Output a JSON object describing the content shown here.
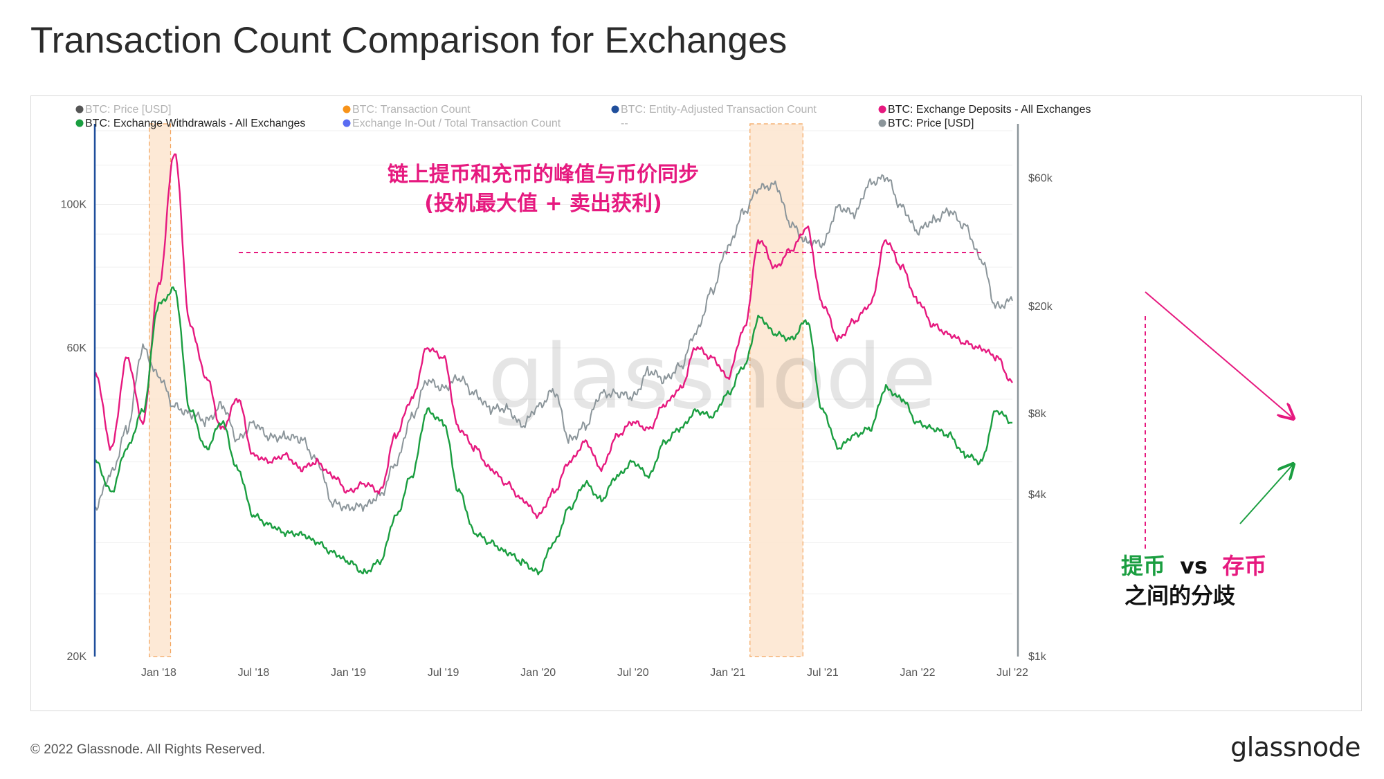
{
  "page": {
    "title": "Transaction Count Comparison for Exchanges",
    "copyright": "© 2022 Glassnode. All Rights Reserved.",
    "logo": "glassnode",
    "watermark": "glassnode"
  },
  "legend": [
    {
      "label": "BTC: Price [USD]",
      "color": "#555555",
      "active": false
    },
    {
      "label": "BTC: Transaction Count",
      "color": "#f7931a",
      "active": false
    },
    {
      "label": "BTC: Entity-Adjusted Transaction Count",
      "color": "#1f4e9b",
      "active": false
    },
    {
      "label": "BTC: Exchange Deposits - All Exchanges",
      "color": "#e6197f",
      "active": true
    },
    {
      "label": "BTC: Exchange Withdrawals - All Exchanges",
      "color": "#1a9e40",
      "active": true
    },
    {
      "label": "Exchange In-Out / Total Transaction Count",
      "color": "#5a6cf2",
      "active": false
    },
    {
      "label": "--",
      "color": "",
      "active": false
    },
    {
      "label": "BTC: Price [USD]",
      "color": "#8b959a",
      "active": true
    }
  ],
  "annotations": {
    "headline_line1": "链上提币和充币的峰值与币价同步",
    "headline_line2": "(投机最大值 + 卖出获利)",
    "divergence_withdraw": "提币",
    "divergence_vs": "vs",
    "divergence_deposit": "存币",
    "divergence_line2": "之间的分歧"
  },
  "chart_data": {
    "type": "line",
    "x_ticks": [
      "Jan '18",
      "Jul '18",
      "Jan '19",
      "Jul '19",
      "Jan '20",
      "Jul '20",
      "Jan '21",
      "Jul '21",
      "Jan '22",
      "Jul '22"
    ],
    "y_left": {
      "ticks": [
        "100K",
        "60K",
        "20K"
      ],
      "range": [
        20000,
        130000
      ],
      "scale": "log"
    },
    "y_right": {
      "ticks": [
        "$60k",
        "$20k",
        "$8k",
        "$4k",
        "$1k"
      ],
      "range": [
        1000,
        90000
      ],
      "scale": "log"
    },
    "highlight_periods": [
      [
        "Dec '17",
        "Jan '18"
      ],
      [
        "Feb '21",
        "May '21"
      ]
    ],
    "x_range": [
      "Sep '17",
      "Jul '22"
    ],
    "series": [
      {
        "name": "BTC: Exchange Deposits - All Exchanges",
        "axis": "left",
        "color": "#e6197f",
        "x": [
          "Sep '17",
          "Oct '17",
          "Nov '17",
          "Dec '17",
          "Jan '18",
          "Feb '18",
          "Mar '18",
          "Apr '18",
          "May '18",
          "Jun '18",
          "Jul '18",
          "Aug '18",
          "Sep '18",
          "Oct '18",
          "Nov '18",
          "Dec '18",
          "Jan '19",
          "Feb '19",
          "Mar '19",
          "Apr '19",
          "May '19",
          "Jun '19",
          "Jul '19",
          "Aug '19",
          "Sep '19",
          "Oct '19",
          "Nov '19",
          "Dec '19",
          "Jan '20",
          "Feb '20",
          "Mar '20",
          "Apr '20",
          "May '20",
          "Jun '20",
          "Jul '20",
          "Aug '20",
          "Sep '20",
          "Oct '20",
          "Nov '20",
          "Dec '20",
          "Jan '21",
          "Feb '21",
          "Mar '21",
          "Apr '21",
          "May '21",
          "Jun '21",
          "Jul '21",
          "Aug '21",
          "Sep '21",
          "Oct '21",
          "Nov '21",
          "Dec '21",
          "Jan '22",
          "Feb '22",
          "Mar '22",
          "Apr '22",
          "May '22",
          "Jun '22",
          "Jul '22"
        ],
        "values": [
          55000,
          42000,
          58000,
          46000,
          75000,
          120000,
          65000,
          54000,
          45000,
          50000,
          41000,
          40000,
          41000,
          39000,
          40000,
          38000,
          36000,
          37000,
          36000,
          44000,
          50000,
          60000,
          58000,
          45000,
          42000,
          39000,
          37000,
          35000,
          33000,
          36000,
          40000,
          43000,
          39000,
          44000,
          46000,
          45000,
          49000,
          52000,
          60000,
          58000,
          54000,
          64000,
          88000,
          80000,
          85000,
          92000,
          70000,
          62000,
          66000,
          70000,
          88000,
          80000,
          71000,
          65000,
          63000,
          61000,
          60000,
          58000,
          53000
        ]
      },
      {
        "name": "BTC: Exchange Withdrawals - All Exchanges",
        "axis": "left",
        "color": "#1a9e40",
        "x": [
          "Sep '17",
          "Oct '17",
          "Nov '17",
          "Dec '17",
          "Jan '18",
          "Feb '18",
          "Mar '18",
          "Apr '18",
          "May '18",
          "Jun '18",
          "Jul '18",
          "Aug '18",
          "Sep '18",
          "Oct '18",
          "Nov '18",
          "Dec '18",
          "Jan '19",
          "Feb '19",
          "Mar '19",
          "Apr '19",
          "May '19",
          "Jun '19",
          "Jul '19",
          "Aug '19",
          "Sep '19",
          "Oct '19",
          "Nov '19",
          "Dec '19",
          "Jan '20",
          "Feb '20",
          "Mar '20",
          "Apr '20",
          "May '20",
          "Jun '20",
          "Jul '20",
          "Aug '20",
          "Sep '20",
          "Oct '20",
          "Nov '20",
          "Dec '20",
          "Jan '21",
          "Feb '21",
          "Mar '21",
          "Apr '21",
          "May '21",
          "Jun '21",
          "Jul '21",
          "Aug '21",
          "Sep '21",
          "Oct '21",
          "Nov '21",
          "Dec '21",
          "Jan '22",
          "Feb '22",
          "Mar '22",
          "Apr '22",
          "May '22",
          "Jun '22",
          "Jul '22"
        ],
        "values": [
          40000,
          36000,
          42000,
          48000,
          70000,
          74000,
          48000,
          42000,
          46000,
          39000,
          33000,
          32000,
          31000,
          31000,
          30000,
          29000,
          28000,
          27000,
          28000,
          33000,
          38000,
          48000,
          46000,
          36000,
          31000,
          30000,
          29000,
          28000,
          27000,
          30000,
          34000,
          37000,
          35000,
          38000,
          40000,
          38000,
          43000,
          45000,
          48000,
          47000,
          51000,
          56000,
          67000,
          63000,
          62000,
          66000,
          48000,
          42000,
          44000,
          45000,
          52000,
          50000,
          46000,
          45000,
          44000,
          41000,
          40000,
          48000,
          46000
        ]
      },
      {
        "name": "BTC: Price [USD]",
        "axis": "right",
        "color": "#8b959a",
        "x": [
          "Sep '17",
          "Oct '17",
          "Nov '17",
          "Dec '17",
          "Jan '18",
          "Feb '18",
          "Mar '18",
          "Apr '18",
          "May '18",
          "Jun '18",
          "Jul '18",
          "Aug '18",
          "Sep '18",
          "Oct '18",
          "Nov '18",
          "Dec '18",
          "Jan '19",
          "Feb '19",
          "Mar '19",
          "Apr '19",
          "May '19",
          "Jun '19",
          "Jul '19",
          "Aug '19",
          "Sep '19",
          "Oct '19",
          "Nov '19",
          "Dec '19",
          "Jan '20",
          "Feb '20",
          "Mar '20",
          "Apr '20",
          "May '20",
          "Jun '20",
          "Jul '20",
          "Aug '20",
          "Sep '20",
          "Oct '20",
          "Nov '20",
          "Dec '20",
          "Jan '21",
          "Feb '21",
          "Mar '21",
          "Apr '21",
          "May '21",
          "Jun '21",
          "Jul '21",
          "Aug '21",
          "Sep '21",
          "Oct '21",
          "Nov '21",
          "Dec '21",
          "Jan '22",
          "Feb '22",
          "Mar '22",
          "Apr '22",
          "May '22",
          "Jun '22",
          "Jul '22"
        ],
        "values": [
          3600,
          4800,
          7000,
          14000,
          11000,
          8500,
          8000,
          7500,
          8600,
          6400,
          7400,
          6500,
          6600,
          6400,
          5400,
          3700,
          3600,
          3600,
          4000,
          5200,
          7800,
          10500,
          10000,
          10800,
          9500,
          8300,
          8400,
          7200,
          8500,
          9700,
          6400,
          7200,
          9500,
          9500,
          9200,
          11500,
          10700,
          12000,
          16000,
          23000,
          33000,
          45000,
          55000,
          57000,
          40000,
          35000,
          34000,
          47000,
          44000,
          58000,
          60000,
          47000,
          38000,
          42000,
          45000,
          40000,
          30000,
          20000,
          21000
        ]
      }
    ]
  }
}
